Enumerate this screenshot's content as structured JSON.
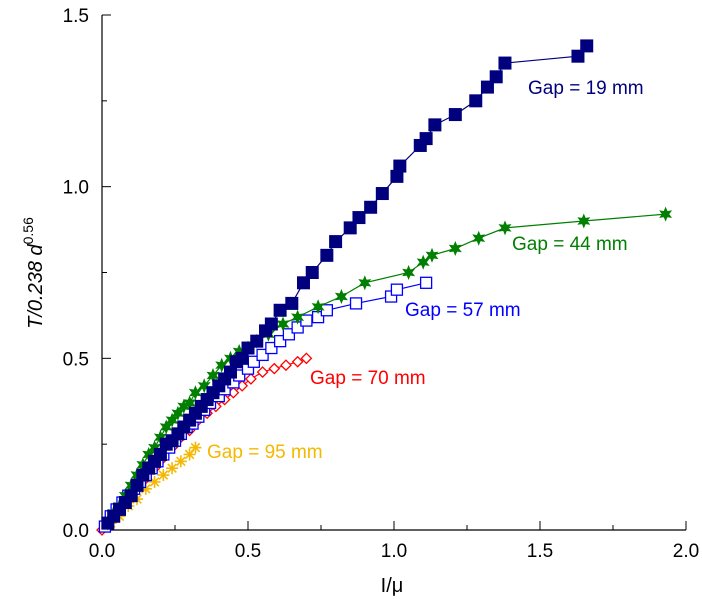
{
  "chart_data": {
    "type": "scatter",
    "xlabel": "I/μ",
    "ylabel_main": "T/0.238 d",
    "ylabel_exp": "0.56",
    "xlim": [
      0,
      2.0
    ],
    "ylim": [
      0,
      1.5
    ],
    "xticks": [
      "0.0",
      "0.5",
      "1.0",
      "1.5",
      "2.0"
    ],
    "yticks": [
      "0.0",
      "0.5",
      "1.0",
      "1.5"
    ],
    "xtick_values": [
      0,
      0.5,
      1.0,
      1.5,
      2.0
    ],
    "ytick_values": [
      0,
      0.5,
      1.0,
      1.5
    ],
    "grid": false,
    "series": [
      {
        "name": "Gap = 19 mm",
        "color": "#00007f",
        "marker": "filled-square",
        "line": true,
        "x": [
          0.02,
          0.04,
          0.06,
          0.08,
          0.1,
          0.12,
          0.14,
          0.16,
          0.18,
          0.2,
          0.22,
          0.24,
          0.26,
          0.28,
          0.3,
          0.32,
          0.34,
          0.36,
          0.38,
          0.4,
          0.42,
          0.44,
          0.46,
          0.48,
          0.5,
          0.53,
          0.56,
          0.58,
          0.61,
          0.65,
          0.69,
          0.72,
          0.77,
          0.8,
          0.85,
          0.88,
          0.92,
          0.96,
          1.01,
          1.02,
          1.09,
          1.11,
          1.14,
          1.21,
          1.28,
          1.32,
          1.35,
          1.38,
          1.63,
          1.66
        ],
        "y": [
          0.02,
          0.04,
          0.06,
          0.08,
          0.1,
          0.13,
          0.16,
          0.18,
          0.2,
          0.22,
          0.25,
          0.26,
          0.28,
          0.3,
          0.32,
          0.34,
          0.36,
          0.38,
          0.4,
          0.42,
          0.44,
          0.46,
          0.49,
          0.5,
          0.53,
          0.55,
          0.58,
          0.6,
          0.64,
          0.66,
          0.72,
          0.75,
          0.8,
          0.84,
          0.88,
          0.91,
          0.94,
          0.98,
          1.03,
          1.06,
          1.12,
          1.14,
          1.18,
          1.21,
          1.25,
          1.29,
          1.32,
          1.36,
          1.38,
          1.41
        ]
      },
      {
        "name": "Gap = 44 mm",
        "color": "#007f00",
        "marker": "filled-star",
        "line": true,
        "x": [
          0.02,
          0.04,
          0.06,
          0.08,
          0.1,
          0.12,
          0.14,
          0.16,
          0.18,
          0.2,
          0.22,
          0.24,
          0.26,
          0.28,
          0.3,
          0.32,
          0.35,
          0.38,
          0.41,
          0.44,
          0.47,
          0.5,
          0.53,
          0.57,
          0.62,
          0.67,
          0.74,
          0.82,
          0.9,
          1.05,
          1.1,
          1.13,
          1.21,
          1.29,
          1.38,
          1.65,
          1.93
        ],
        "y": [
          0.02,
          0.05,
          0.07,
          0.1,
          0.13,
          0.16,
          0.19,
          0.22,
          0.24,
          0.27,
          0.3,
          0.32,
          0.34,
          0.36,
          0.37,
          0.4,
          0.42,
          0.45,
          0.48,
          0.5,
          0.52,
          0.53,
          0.55,
          0.57,
          0.6,
          0.62,
          0.65,
          0.68,
          0.72,
          0.75,
          0.78,
          0.8,
          0.82,
          0.85,
          0.88,
          0.9,
          0.92
        ]
      },
      {
        "name": "Gap = 57 mm",
        "color": "#0000ff",
        "marker": "open-square",
        "line": true,
        "x": [
          0.01,
          0.03,
          0.05,
          0.07,
          0.09,
          0.11,
          0.13,
          0.15,
          0.17,
          0.19,
          0.21,
          0.23,
          0.25,
          0.27,
          0.29,
          0.31,
          0.33,
          0.35,
          0.37,
          0.4,
          0.42,
          0.45,
          0.47,
          0.5,
          0.52,
          0.55,
          0.58,
          0.61,
          0.64,
          0.67,
          0.7,
          0.74,
          0.77,
          0.87,
          0.99,
          1.01,
          1.11
        ],
        "y": [
          0.01,
          0.04,
          0.06,
          0.08,
          0.1,
          0.12,
          0.14,
          0.16,
          0.18,
          0.2,
          0.22,
          0.24,
          0.26,
          0.28,
          0.3,
          0.31,
          0.33,
          0.35,
          0.37,
          0.39,
          0.41,
          0.43,
          0.45,
          0.47,
          0.49,
          0.51,
          0.53,
          0.55,
          0.57,
          0.59,
          0.61,
          0.62,
          0.64,
          0.66,
          0.68,
          0.7,
          0.72
        ]
      },
      {
        "name": "Gap = 70 mm",
        "color": "#ff0000",
        "marker": "open-diamond",
        "line": true,
        "x": [
          0.0,
          0.03,
          0.06,
          0.09,
          0.12,
          0.15,
          0.18,
          0.21,
          0.24,
          0.27,
          0.3,
          0.33,
          0.36,
          0.39,
          0.42,
          0.45,
          0.48,
          0.51,
          0.55,
          0.59,
          0.63,
          0.67,
          0.7
        ],
        "y": [
          0.0,
          0.03,
          0.06,
          0.09,
          0.12,
          0.15,
          0.18,
          0.21,
          0.24,
          0.27,
          0.29,
          0.32,
          0.34,
          0.36,
          0.38,
          0.4,
          0.42,
          0.44,
          0.46,
          0.47,
          0.48,
          0.49,
          0.5
        ]
      },
      {
        "name": "Gap = 95 mm",
        "color": "#f5b800",
        "marker": "asterisk",
        "line": false,
        "x": [
          0.03,
          0.06,
          0.09,
          0.12,
          0.15,
          0.18,
          0.21,
          0.24,
          0.27,
          0.3,
          0.32
        ],
        "y": [
          0.02,
          0.04,
          0.07,
          0.09,
          0.12,
          0.14,
          0.16,
          0.18,
          0.2,
          0.22,
          0.24
        ]
      }
    ]
  }
}
